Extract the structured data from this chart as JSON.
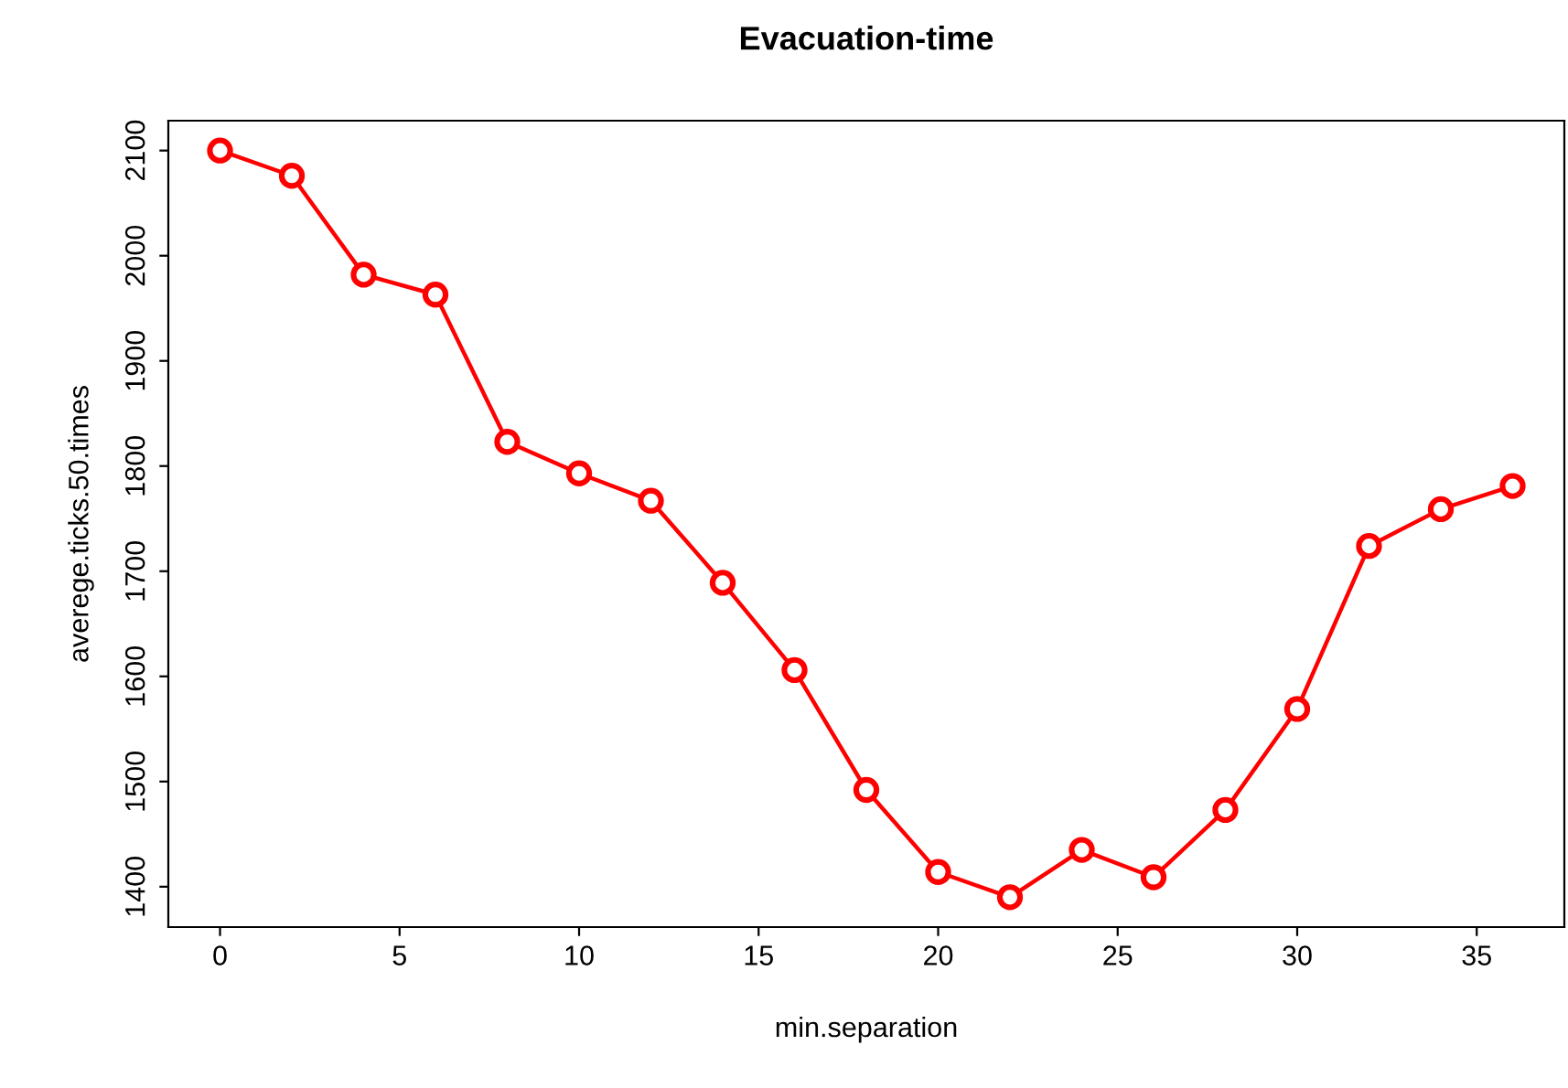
{
  "chart_data": {
    "type": "line",
    "title": "Evacuation-time",
    "xlabel": "min.separation",
    "ylabel": "averege.ticks.50.times",
    "x": [
      0,
      2,
      4,
      6,
      8,
      10,
      12,
      14,
      16,
      18,
      20,
      22,
      24,
      26,
      28,
      30,
      32,
      34,
      36
    ],
    "series": [
      {
        "color": "#ff0000",
        "values": [
          2100,
          2076,
          1982,
          1963,
          1823,
          1793,
          1767,
          1689,
          1606,
          1492,
          1414,
          1390,
          1435,
          1409,
          1473,
          1569,
          1724,
          1759,
          1781
        ]
      }
    ],
    "xlim": [
      -1.44,
      37.44
    ],
    "ylim": [
      1361.6,
      2128.4
    ],
    "xticks": [
      0,
      5,
      10,
      15,
      20,
      25,
      30,
      35
    ],
    "yticks": [
      1400,
      1500,
      1600,
      1700,
      1800,
      1900,
      2000,
      2100
    ],
    "marker": "circle",
    "line_style": "solid",
    "grid": false,
    "legend": false
  }
}
